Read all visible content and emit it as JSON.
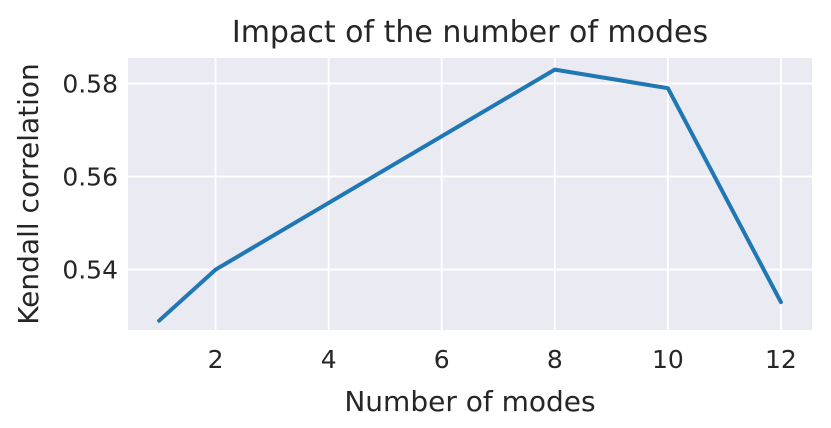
{
  "chart_data": {
    "type": "line",
    "title": "Impact of the number of modes",
    "xlabel": "Number of modes",
    "ylabel": "Kendall correlation",
    "x": [
      1,
      2,
      8,
      10,
      12
    ],
    "y": [
      0.529,
      0.54,
      0.583,
      0.579,
      0.533
    ],
    "x_ticks": [
      2,
      4,
      6,
      8,
      10,
      12
    ],
    "x_tick_labels": [
      "2",
      "4",
      "6",
      "8",
      "10",
      "12"
    ],
    "y_ticks": [
      0.54,
      0.56,
      0.58
    ],
    "y_tick_labels": [
      "0.54",
      "0.56",
      "0.58"
    ],
    "xlim": [
      0.45,
      12.55
    ],
    "ylim": [
      0.527,
      0.5855
    ],
    "grid": true,
    "legend": "none",
    "style": {
      "line_color": "#1f77b4",
      "plot_bg": "#eaeaf2",
      "grid_color": "#ffffff",
      "text_color": "#262626"
    }
  }
}
